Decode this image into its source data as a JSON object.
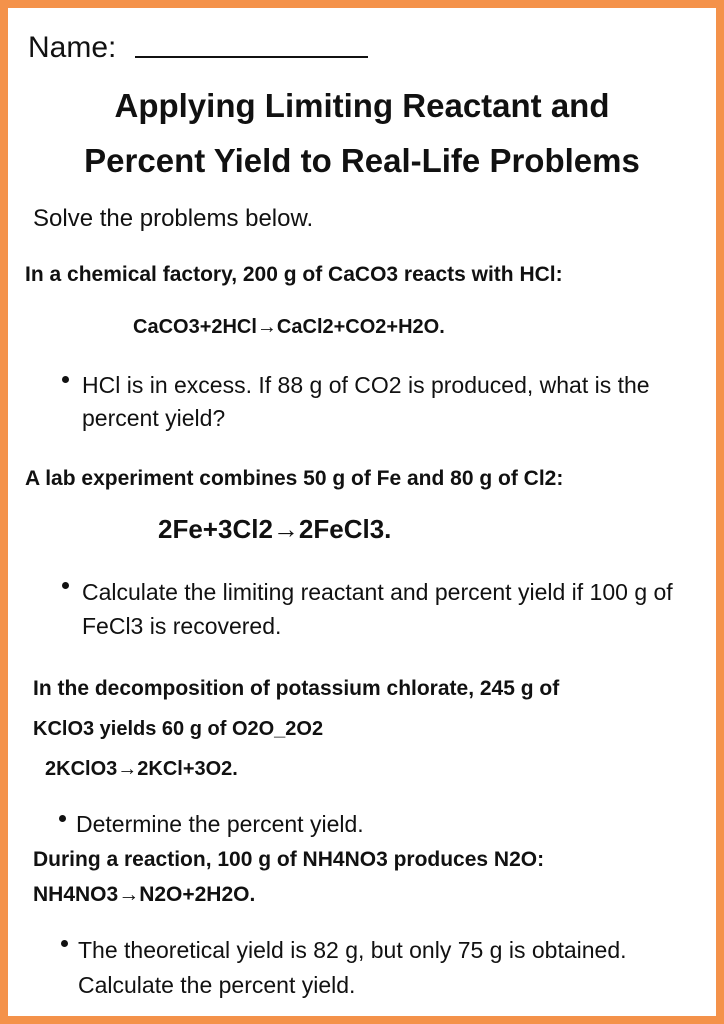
{
  "header": {
    "name_label": "Name:",
    "title": [
      "Applying Limiting Reactant and",
      "Percent Yield to Real-Life Problems"
    ],
    "instruction": "Solve the problems below."
  },
  "problems": [
    {
      "statement": [
        "In a chemical factory, 200 g of CaCO3 reacts with HCl:"
      ],
      "equation": "CaCO3+2HCl→CaCl2+CO2+H2O.",
      "bullet": "HCl is in excess. If 88 g of CO2 is produced, what is the percent yield?"
    },
    {
      "statement": [
        "A lab experiment combines 50 g of Fe and 80 g of Cl2:"
      ],
      "equation": "2Fe+3Cl2→2FeCl3.",
      "bullet": "Calculate the limiting reactant and percent yield if 100 g of FeCl3 is recovered."
    },
    {
      "statement": [
        "In the decomposition of potassium chlorate, 245 g of",
        "KClO3 yields 60 g of O2O_2O2"
      ],
      "equation": "2KClO3→2KCl+3O2.",
      "bullet": "Determine the percent yield."
    },
    {
      "statement": [
        "During a reaction, 100 g of NH4NO3 produces N2O:"
      ],
      "equation": "NH4NO3→N2O+2H2O.",
      "bullet": "The theoretical yield is 82 g, but only 75 g is obtained. Calculate the percent yield."
    }
  ]
}
